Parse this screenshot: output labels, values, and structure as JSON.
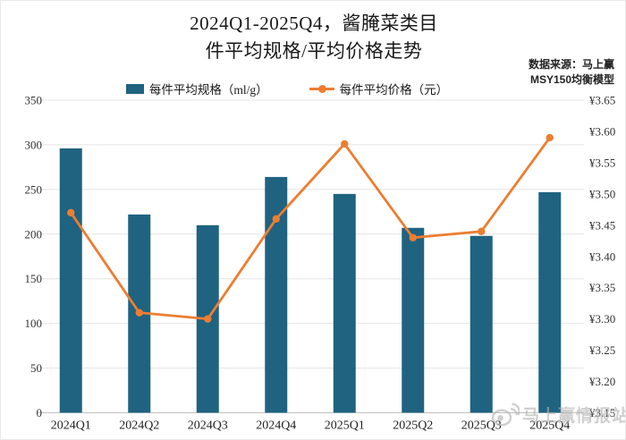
{
  "header": {
    "title_line1": "2024Q1-2025Q4，酱腌菜类目",
    "title_line2": "件平均规格/平均价格走势",
    "source_line1": "数据来源：马上赢",
    "source_line2": "MSY150均衡模型"
  },
  "legend": {
    "bar_label": "每件平均规格（ml/g）",
    "line_label": "每件平均价格（元）"
  },
  "watermark": {
    "text": "马上赢情报站",
    "icon": "weibo-icon"
  },
  "colors": {
    "bar": "#1f6380",
    "line": "#ed7d31",
    "grid": "#e4e4e4",
    "axis_line": "#bfbfbf",
    "tick_text": "#333333",
    "watermark": "#b2b2b2"
  },
  "chart_data": {
    "type": "bar",
    "subtype": "combo-bar-line",
    "title": "2024Q1-2025Q4，酱腌菜类目 件平均规格/平均价格走势",
    "categories": [
      "2024Q1",
      "2024Q2",
      "2024Q3",
      "2024Q4",
      "2025Q1",
      "2025Q2",
      "2025Q3",
      "2025Q4"
    ],
    "series": [
      {
        "name": "每件平均规格（ml/g）",
        "type": "bar",
        "axis": "left",
        "values": [
          296,
          222,
          210,
          264,
          245,
          207,
          198,
          247
        ]
      },
      {
        "name": "每件平均价格（元）",
        "type": "line",
        "axis": "right",
        "values": [
          3.47,
          3.31,
          3.3,
          3.46,
          3.58,
          3.43,
          3.44,
          3.59
        ]
      }
    ],
    "left_axis": {
      "min": 0,
      "max": 350,
      "ticks": [
        0,
        50,
        100,
        150,
        200,
        250,
        300,
        350
      ],
      "tick_labels": [
        "0",
        "50",
        "100",
        "150",
        "200",
        "250",
        "300",
        "350"
      ]
    },
    "right_axis": {
      "min": 3.15,
      "max": 3.65,
      "ticks": [
        3.15,
        3.2,
        3.25,
        3.3,
        3.35,
        3.4,
        3.45,
        3.5,
        3.55,
        3.6,
        3.65
      ],
      "tick_labels": [
        "¥3.15",
        "¥3.20",
        "¥3.25",
        "¥3.30",
        "¥3.35",
        "¥3.40",
        "¥3.45",
        "¥3.50",
        "¥3.55",
        "¥3.60",
        "¥3.65"
      ]
    },
    "grid": true,
    "legend_position": "top-center"
  }
}
